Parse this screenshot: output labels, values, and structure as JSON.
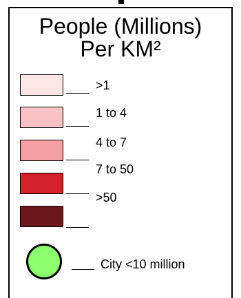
{
  "legend": {
    "title_line1": "People (Millions)",
    "title_line2": "Per KM²",
    "classes": [
      {
        "label": ">1",
        "color": "#fce6e7"
      },
      {
        "label": "1 to 4",
        "color": "#f9c3c5"
      },
      {
        "label": "4 to 7",
        "color": "#f5a0a3"
      },
      {
        "label": "7 to 50",
        "color": "#d3222b"
      },
      {
        "label": ">50",
        "color": "#6b171e"
      }
    ],
    "city": {
      "label": "City  <10 million",
      "color": "#8cff6e",
      "icon": "circle-marker"
    }
  }
}
